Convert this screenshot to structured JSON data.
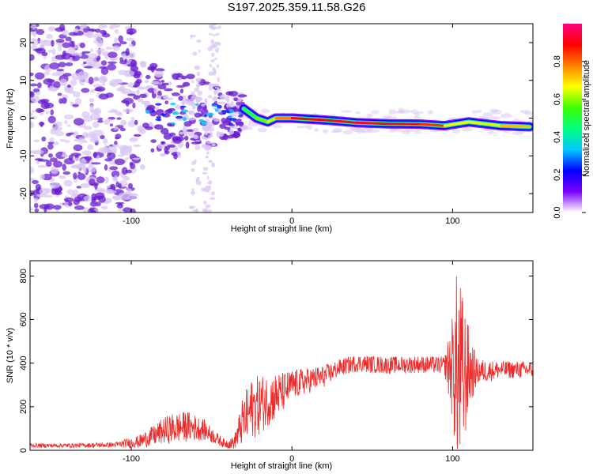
{
  "title": "S197.2025.359.11.58.G26",
  "colors": {
    "snr_line": "#ee2b2b",
    "scatter_fill": "#6a1fd0",
    "scatter_light": "#d9c6f2",
    "background": "#ffffff"
  },
  "chart_data": [
    {
      "type": "heatmap",
      "name": "spectrogram",
      "xlabel": "Height of straight line (km)",
      "ylabel": "Frequency (Hz)",
      "xlim": [
        -163,
        150
      ],
      "ylim": [
        -25,
        25
      ],
      "xticks": [
        -100,
        0,
        100
      ],
      "yticks": [
        -20,
        -10,
        0,
        10,
        20
      ],
      "ridge": [
        {
          "x": -30,
          "y": 2.5,
          "v": 0.45
        },
        {
          "x": -22,
          "y": 0.0,
          "v": 0.55
        },
        {
          "x": -15,
          "y": -1.0,
          "v": 0.6
        },
        {
          "x": -10,
          "y": 0.0,
          "v": 0.7
        },
        {
          "x": 0,
          "y": 0.0,
          "v": 0.85
        },
        {
          "x": 20,
          "y": -0.5,
          "v": 0.95
        },
        {
          "x": 40,
          "y": -1.2,
          "v": 0.9
        },
        {
          "x": 60,
          "y": -1.5,
          "v": 0.95
        },
        {
          "x": 80,
          "y": -1.6,
          "v": 0.9
        },
        {
          "x": 95,
          "y": -2.0,
          "v": 0.8
        },
        {
          "x": 110,
          "y": -1.0,
          "v": 0.55
        },
        {
          "x": 130,
          "y": -2.0,
          "v": 0.75
        },
        {
          "x": 148,
          "y": -2.3,
          "v": 0.7
        }
      ]
    },
    {
      "type": "colorbar",
      "name": "normalized-amplitude-colorbar",
      "label": "Normalized spectral amplitude",
      "range": [
        0,
        1
      ],
      "ticks": [
        "0.0",
        "0.2",
        "0.4",
        "0.6",
        "0.8"
      ],
      "tick_values": [
        0.0,
        0.2,
        0.4,
        0.6,
        0.8
      ],
      "colors": [
        "#ffffff",
        "#7a00ff",
        "#0000ff",
        "#00c8ff",
        "#00ff80",
        "#40ff00",
        "#ffff00",
        "#ff8000",
        "#ff0000",
        "#ff0080"
      ]
    },
    {
      "type": "line",
      "name": "snr",
      "xlabel": "Height of straight line (km)",
      "ylabel": "SNR (10 * v/v)",
      "xlim": [
        -163,
        150
      ],
      "ylim": [
        0,
        870
      ],
      "xticks": [
        -100,
        0,
        100
      ],
      "yticks": [
        0,
        200,
        400,
        600,
        800
      ],
      "envelope": {
        "x": [
          -163,
          -140,
          -110,
          -95,
          -85,
          -80,
          -75,
          -65,
          -55,
          -48,
          -42,
          -36,
          -30,
          -25,
          -20,
          -15,
          -10,
          -5,
          0,
          10,
          20,
          30,
          40,
          60,
          80,
          95,
          100,
          103,
          106,
          110,
          115,
          130,
          150
        ],
        "mean": [
          22,
          22,
          25,
          40,
          70,
          90,
          100,
          110,
          95,
          60,
          30,
          35,
          140,
          190,
          210,
          230,
          250,
          270,
          300,
          320,
          340,
          380,
          400,
          390,
          395,
          390,
          380,
          360,
          330,
          370,
          360,
          370,
          370
        ],
        "noise": [
          10,
          10,
          12,
          30,
          50,
          60,
          70,
          70,
          50,
          30,
          20,
          30,
          120,
          140,
          140,
          120,
          110,
          90,
          70,
          60,
          50,
          40,
          40,
          40,
          40,
          40,
          250,
          500,
          400,
          200,
          60,
          40,
          40
        ]
      }
    }
  ]
}
